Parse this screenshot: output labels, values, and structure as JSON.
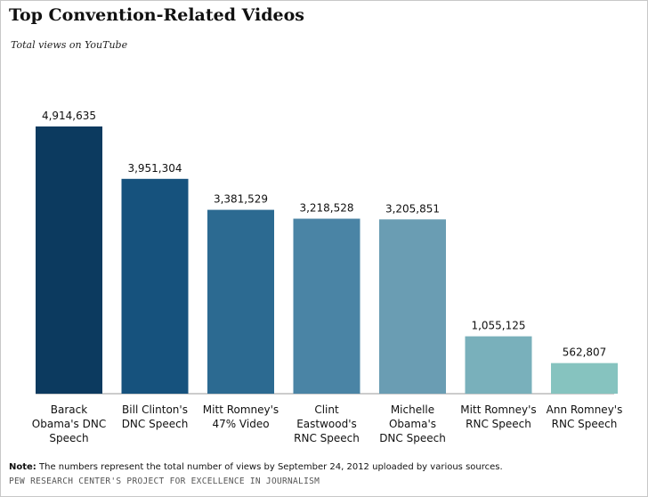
{
  "header": {
    "title": "Top Convention-Related Videos",
    "subtitle": "Total views on YouTube"
  },
  "footer": {
    "note_label": "Note:",
    "note_text": " The numbers represent the total number of views by September 24, 2012 uploaded by various sources.",
    "source": "PEW RESEARCH CENTER'S PROJECT FOR EXCELLENCE IN JOURNALISM"
  },
  "chart_data": {
    "type": "bar",
    "title": "Top Convention-Related Videos",
    "subtitle": "Total views on YouTube",
    "xlabel": "",
    "ylabel": "",
    "grid": false,
    "legend": "none",
    "categories": [
      [
        "Barack",
        "Obama's DNC",
        "Speech"
      ],
      [
        "Bill Clinton's",
        "DNC Speech"
      ],
      [
        "Mitt Romney's",
        "47% Video"
      ],
      [
        "Clint",
        "Eastwood's",
        "RNC Speech"
      ],
      [
        "Michelle",
        "Obama's",
        "DNC Speech"
      ],
      [
        "Mitt Romney's",
        "RNC Speech"
      ],
      [
        "Ann Romney's",
        "RNC Speech"
      ]
    ],
    "values": [
      4914635,
      3951304,
      3381529,
      3218528,
      3205851,
      1055125,
      562807
    ],
    "value_labels": [
      "4,914,635",
      "3,951,304",
      "3,381,529",
      "3,218,528",
      "3,205,851",
      "1,055,125",
      "562,807"
    ],
    "colors": [
      "#0c3a5f",
      "#16527d",
      "#2c6a91",
      "#4a84a5",
      "#6a9db3",
      "#79b0bb",
      "#86c3bf"
    ]
  }
}
